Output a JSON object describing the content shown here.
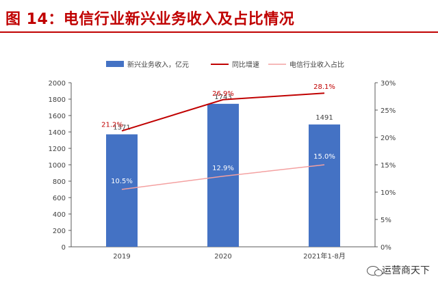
{
  "title": "图 14：电信行业新兴业务收入及占比情况",
  "watermark": "运营商天下",
  "colors": {
    "bar": "#4472c4",
    "growth": "#c00000",
    "share": "#f4a0a0",
    "axis": "#595959",
    "grid": "#d9d9d9"
  },
  "chart_data": {
    "type": "bar",
    "categories": [
      "2019",
      "2020",
      "2021年1-8月"
    ],
    "series": [
      {
        "name": "新兴业务收入，亿元",
        "type": "bar",
        "axis": "left",
        "values": [
          1371,
          1743,
          1491
        ],
        "labels": [
          "1371",
          "1743",
          "1491"
        ]
      },
      {
        "name": "同比增速",
        "type": "line",
        "axis": "right",
        "values": [
          21.2,
          26.9,
          28.1
        ],
        "labels": [
          "21.2%",
          "26.9%",
          "28.1%"
        ]
      },
      {
        "name": "电信行业收入占比",
        "type": "line",
        "axis": "right",
        "values": [
          10.5,
          12.9,
          15.0
        ],
        "labels": [
          "10.5%",
          "12.9%",
          "15.0%"
        ]
      }
    ],
    "y_left": {
      "min": 0,
      "max": 2000,
      "step": 200,
      "ticks": [
        "0",
        "200",
        "400",
        "600",
        "800",
        "1000",
        "1200",
        "1400",
        "1600",
        "1800",
        "2000"
      ]
    },
    "y_right": {
      "min": 0,
      "max": 30,
      "step": 5,
      "ticks": [
        "0%",
        "5%",
        "10%",
        "15%",
        "20%",
        "25%",
        "30%"
      ]
    },
    "legend_position": "top",
    "grid": false
  }
}
